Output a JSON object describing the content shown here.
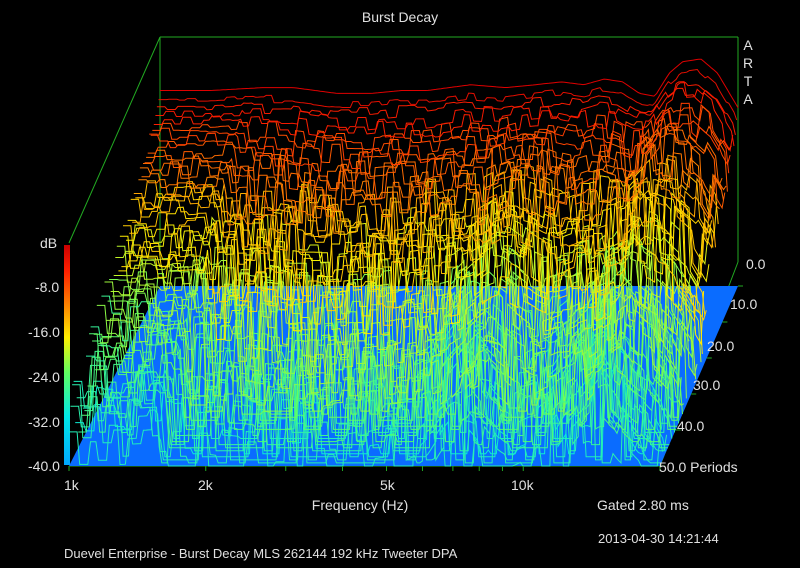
{
  "window": {
    "title": ""
  },
  "chart_data": {
    "type": "waterfall",
    "title": "Burst Decay",
    "brand": [
      "A",
      "R",
      "T",
      "A"
    ],
    "xlabel": "Frequency (Hz)",
    "x_tick_labels": [
      "1k",
      "2k",
      "5k",
      "10k"
    ],
    "x_tick_values": [
      1000,
      2000,
      5000,
      10000
    ],
    "x_range": [
      1000,
      20000
    ],
    "x_scale": "log",
    "z_label": "Periods",
    "z_tick_labels": [
      "0.0",
      "10.0",
      "20.0",
      "30.0",
      "40.0",
      "50.0 Periods"
    ],
    "z_range": [
      0,
      50
    ],
    "colorbar": {
      "label": "dB",
      "tick_labels": [
        "-8.0",
        "-16.0",
        "-24.0",
        "-32.0",
        "-40.0"
      ],
      "range": [
        -40,
        0
      ],
      "colors": [
        "#00aaff",
        "#00e5ff",
        "#30ff90",
        "#e0ff20",
        "#ffcc00",
        "#ff6600",
        "#ff0000",
        "#cc0000"
      ]
    },
    "floor_color": "#0a6cff",
    "front_slice_db": [
      [
        1000,
        -6
      ],
      [
        1300,
        -6
      ],
      [
        1700,
        -5.5
      ],
      [
        2000,
        -5.5
      ],
      [
        2500,
        -6.5
      ],
      [
        3000,
        -6.5
      ],
      [
        3500,
        -6
      ],
      [
        4000,
        -6
      ],
      [
        5000,
        -5
      ],
      [
        6000,
        -5.5
      ],
      [
        7000,
        -5
      ],
      [
        8000,
        -4.5
      ],
      [
        9000,
        -5
      ],
      [
        10000,
        -4
      ],
      [
        11000,
        -4.5
      ],
      [
        12000,
        -6.5
      ],
      [
        13000,
        -7
      ],
      [
        14000,
        -3
      ],
      [
        15000,
        -1
      ],
      [
        16500,
        -0.5
      ],
      [
        18000,
        -3
      ],
      [
        20000,
        -9
      ]
    ],
    "annotation_gated": "Gated 2.80 ms",
    "timestamp": "2013-04-30  14:21:44"
  },
  "footer": {
    "caption": "Duevel Enterprise - Burst Decay MLS 262144 192 kHz Tweeter     DPA"
  }
}
